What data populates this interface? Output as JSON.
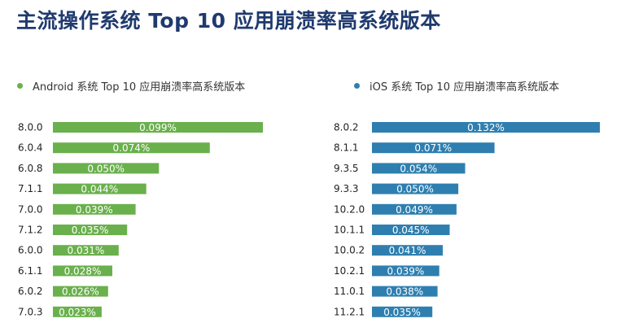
{
  "title": "主流操作系统 Top 10 应用崩溃率高系统版本",
  "colors": {
    "title": "#1f3a6e",
    "android": "#6ab04c",
    "ios": "#2e7fb0",
    "label": "#ffffff",
    "category": "#222222"
  },
  "chart_data": [
    {
      "type": "bar",
      "orientation": "horizontal",
      "title": "Android 系统 Top 10 应用崩溃率高系统版本",
      "categories": [
        "8.0.0",
        "6.0.4",
        "6.0.8",
        "7.1.1",
        "7.0.0",
        "7.1.2",
        "6.0.0",
        "6.1.1",
        "6.0.2",
        "7.0.3"
      ],
      "values": [
        0.099,
        0.074,
        0.05,
        0.044,
        0.039,
        0.035,
        0.031,
        0.028,
        0.026,
        0.023
      ],
      "labels": [
        "0.099%",
        "0.074%",
        "0.050%",
        "0.044%",
        "0.039%",
        "0.035%",
        "0.031%",
        "0.028%",
        "0.026%",
        "0.023%"
      ],
      "unit": "%",
      "color": "#6ab04c",
      "legend": "top-left",
      "grid": false
    },
    {
      "type": "bar",
      "orientation": "horizontal",
      "title": "iOS 系统 Top 10 应用崩溃率高系统版本",
      "categories": [
        "8.0.2",
        "8.1.1",
        "9.3.5",
        "9.3.3",
        "10.2.0",
        "10.1.1",
        "10.0.2",
        "10.2.1",
        "11.0.1",
        "11.2.1"
      ],
      "values": [
        0.132,
        0.071,
        0.054,
        0.05,
        0.049,
        0.045,
        0.041,
        0.039,
        0.038,
        0.035
      ],
      "labels": [
        "0.132%",
        "0.071%",
        "0.054%",
        "0.050%",
        "0.049%",
        "0.045%",
        "0.041%",
        "0.039%",
        "0.038%",
        "0.035%"
      ],
      "unit": "%",
      "color": "#2e7fb0",
      "legend": "top-left",
      "grid": false
    }
  ]
}
